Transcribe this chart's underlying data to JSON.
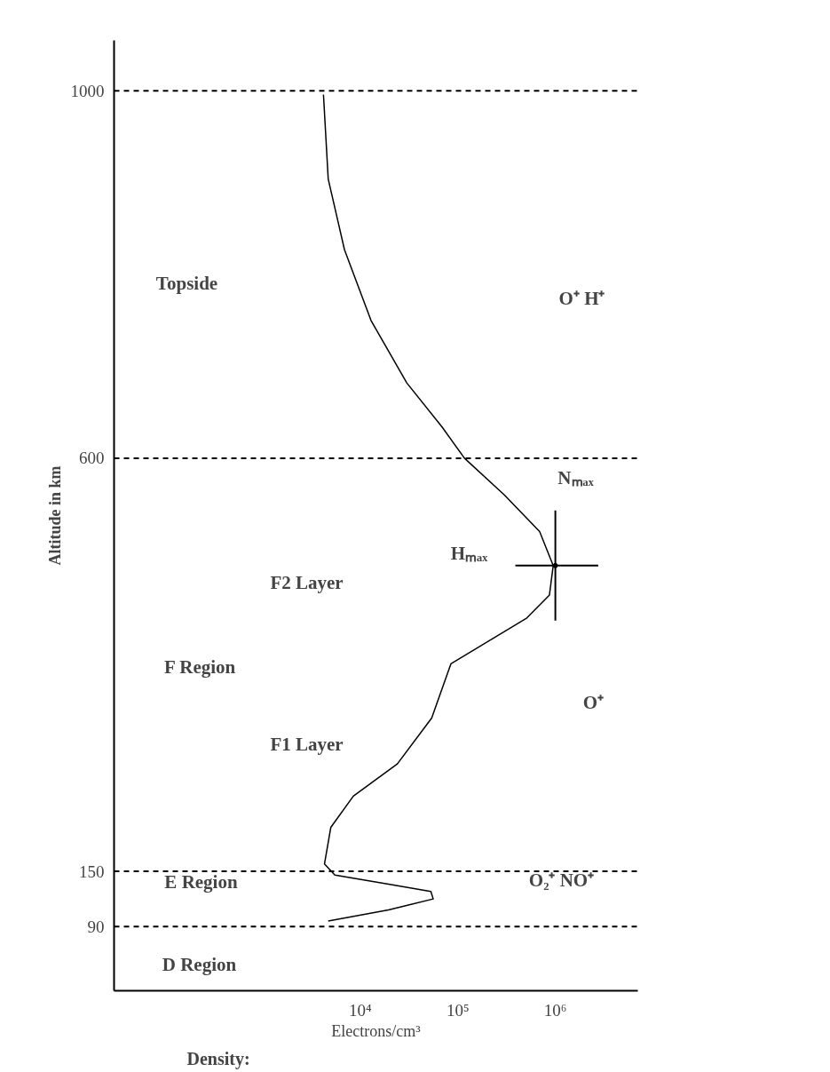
{
  "chart_data": {
    "type": "line",
    "xlabel": "Electrons/cm³",
    "ylabel": "Altitude in km",
    "log": "x",
    "xlim": [
      30,
      7000000
    ],
    "ylim": [
      20,
      1055
    ],
    "xticks": [
      {
        "value": 10000,
        "label": "10⁴"
      },
      {
        "value": 100000,
        "label": "10⁵"
      },
      {
        "value": 1000000,
        "label": "10⁶"
      }
    ],
    "yticks": [
      90,
      150,
      600,
      1000
    ],
    "grid": false,
    "series": [
      {
        "color": "#000000",
        "x": [
          4200,
          4700,
          6900,
          12900,
          30000,
          69000,
          117000,
          300000,
          690000,
          950000,
          870000,
          510000,
          85000,
          54000,
          24000,
          8500,
          5000,
          4300,
          5500,
          19500,
          53000,
          56000,
          19500,
          4700
        ],
        "values": [
          996,
          904,
          827,
          750,
          682,
          634,
          600,
          560,
          520,
          483,
          451,
          426,
          376,
          317,
          267,
          232,
          198,
          158,
          146,
          136,
          128,
          120,
          108,
          96
        ]
      },
      {
        "type": "scatter",
        "marker": "circle",
        "color": "#000000",
        "x": [
          1000000
        ],
        "values": [
          483
        ],
        "errors": [
          60
        ],
        "xerrors": [
          [
            389000,
            2750000
          ]
        ]
      }
    ],
    "ref_lines": [
      {
        "axis": "y",
        "value": 1000,
        "line_style": "dashed"
      },
      {
        "axis": "y",
        "value": 600,
        "line_style": "dashed"
      },
      {
        "axis": "y",
        "value": 150,
        "line_style": "dashed"
      },
      {
        "axis": "y",
        "value": 90,
        "line_style": "dashed"
      }
    ],
    "annotations": [
      "Topside",
      "O⁺ H⁺",
      "Nₘₐₓ",
      "Hₘₐₓ",
      "F2 Layer",
      "F Region",
      "O⁺",
      "F1 Layer",
      "E Region",
      "O₂⁺ NO⁺",
      "D Region",
      "Density:"
    ]
  }
}
